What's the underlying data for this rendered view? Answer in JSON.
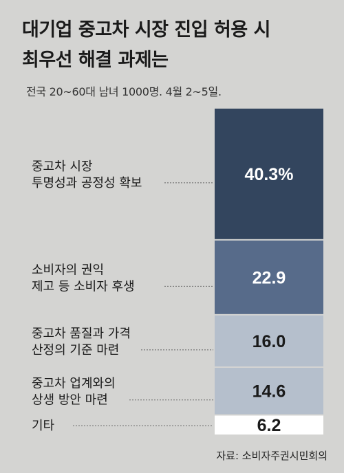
{
  "title_lines": [
    "대기업 중고차 시장 진입 허용 시",
    "최우선 해결 과제는"
  ],
  "subtitle": "전국 20~60대 남녀 1000명. 4월 2~5일.",
  "source": "자료: 소비자주권시민회의",
  "chart_data": {
    "type": "bar",
    "orientation": "stacked-vertical",
    "title": "대기업 중고차 시장 진입 허용 시 최우선 해결 과제는",
    "categories": [
      [
        "중고차 시장",
        "투명성과 공정성 확보"
      ],
      [
        "소비자의 권익",
        "제고 등 소비자 후생"
      ],
      [
        "중고차 품질과 가격",
        "산정의 기준 마련"
      ],
      [
        "중고차 업계와의",
        "상생 방안 마련"
      ],
      [
        "기타"
      ]
    ],
    "values": [
      40.3,
      22.9,
      16.0,
      14.6,
      6.2
    ],
    "value_labels": [
      "40.3%",
      "22.9",
      "16.0",
      "14.6",
      "6.2"
    ],
    "unit": "%",
    "colors": [
      "#33455e",
      "#576b8a",
      "#b5bfcc",
      "#b5bfcc",
      "#ffffff"
    ],
    "label_colors": [
      "#ffffff",
      "#ffffff",
      "#1a1a1a",
      "#1a1a1a",
      "#1a1a1a"
    ]
  }
}
